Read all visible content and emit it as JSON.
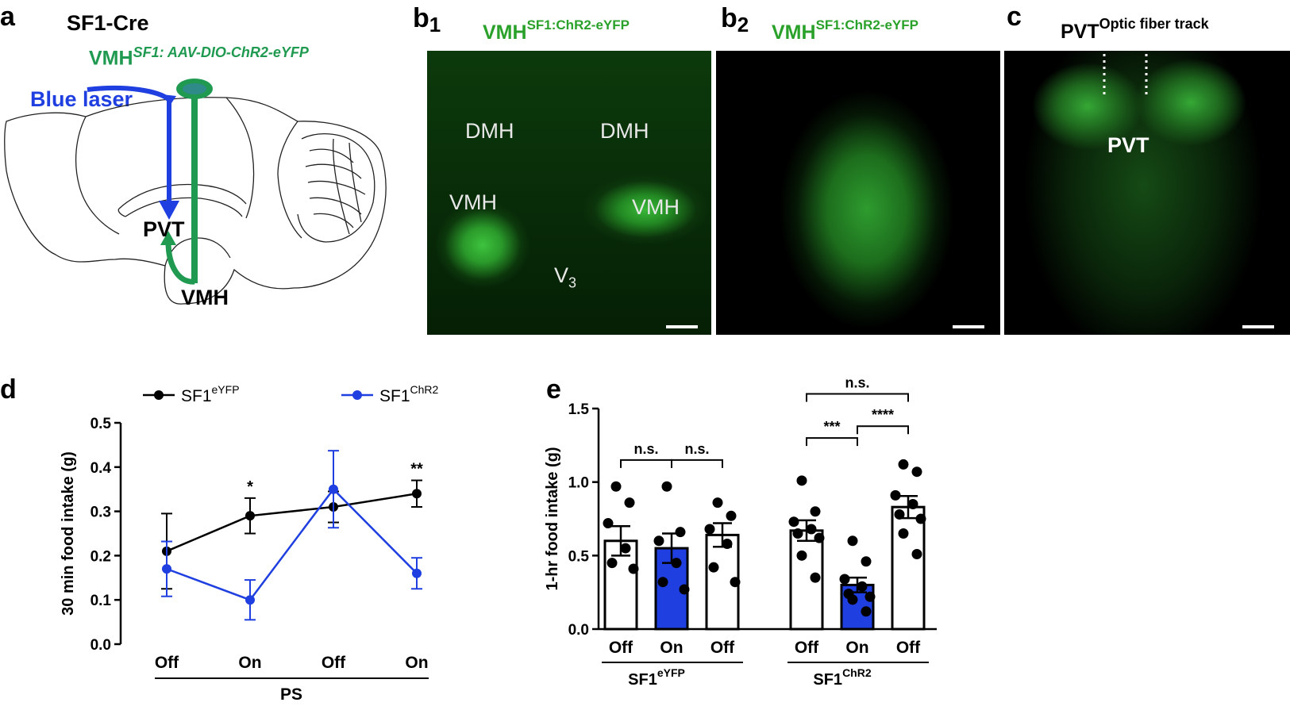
{
  "panel_a": {
    "letter": "a",
    "strain": "SF1-Cre",
    "virus_main": "VMH",
    "virus_sup": "SF1: AAV-DIO-ChR2-eYFP",
    "laser": "Blue laser",
    "pvt": "PVT",
    "vmh": "VMH",
    "colors": {
      "laser": "#1f3fe0",
      "fiber": "#1f9a50"
    }
  },
  "panel_b1": {
    "letter": "b",
    "sub": "1",
    "title_main": "VMH",
    "title_sup": "SF1:ChR2-eYFP",
    "labels": {
      "dmh_left": "DMH",
      "dmh_right": "DMH",
      "vmh_left": "VMH",
      "vmh_right": "VMH",
      "v3": "V",
      "v3_sub": "3"
    }
  },
  "panel_b2": {
    "letter": "b",
    "sub": "2",
    "title_main": "VMH",
    "title_sup": "SF1:ChR2-eYFP"
  },
  "panel_c": {
    "letter": "c",
    "title_main": "PVT",
    "title_sup": "Optic fiber track",
    "label": "PVT"
  },
  "panel_d": {
    "letter": "d",
    "legend": [
      {
        "main": "SF1",
        "sup": "eYFP",
        "color": "#000000"
      },
      {
        "main": "SF1",
        "sup": "ChR2",
        "color": "#1f3fe0"
      }
    ],
    "group_label": "PS",
    "chart_data": {
      "type": "line",
      "categories": [
        "Off",
        "On",
        "Off",
        "On"
      ],
      "ylabel": "30 min food intake (g)",
      "ylim": [
        0.0,
        0.5
      ],
      "yticks": [
        "0.0",
        "0.1",
        "0.2",
        "0.3",
        "0.4",
        "0.5"
      ],
      "series": [
        {
          "name": "SF1eYFP",
          "values": [
            0.21,
            0.29,
            0.31,
            0.34
          ],
          "err": [
            0.085,
            0.04,
            0.035,
            0.03
          ]
        },
        {
          "name": "SF1ChR2",
          "values": [
            0.17,
            0.1,
            0.35,
            0.16
          ],
          "err": [
            0.062,
            0.045,
            0.087,
            0.035
          ]
        }
      ],
      "annotations": [
        {
          "index": 1,
          "text": "*"
        },
        {
          "index": 3,
          "text": "**"
        }
      ]
    }
  },
  "panel_e": {
    "letter": "e",
    "groups": [
      {
        "main": "SF1",
        "sup": "eYFP"
      },
      {
        "main": "SF1",
        "sup": "ChR2"
      }
    ],
    "chart_data": {
      "type": "bar",
      "categories": [
        "Off",
        "On",
        "Off",
        "Off",
        "On",
        "Off"
      ],
      "ylabel": "1-hr food intake (g)",
      "ylim": [
        0.0,
        1.5
      ],
      "yticks": [
        "0.0",
        "0.5",
        "1.0",
        "1.5"
      ],
      "values": [
        0.6,
        0.55,
        0.64,
        0.67,
        0.3,
        0.83
      ],
      "err": [
        0.1,
        0.1,
        0.08,
        0.07,
        0.05,
        0.075
      ],
      "filled": [
        false,
        true,
        false,
        false,
        true,
        false
      ],
      "points": [
        [
          0.97,
          0.86,
          0.72,
          0.55,
          0.45,
          0.41
        ],
        [
          0.97,
          0.66,
          0.6,
          0.45,
          0.32,
          0.27
        ],
        [
          0.86,
          0.77,
          0.68,
          0.58,
          0.42,
          0.32
        ],
        [
          1.01,
          0.8,
          0.73,
          0.68,
          0.65,
          0.62,
          0.5,
          0.35
        ],
        [
          0.6,
          0.46,
          0.34,
          0.29,
          0.24,
          0.22,
          0.2,
          0.12
        ],
        [
          1.12,
          1.07,
          0.91,
          0.85,
          0.78,
          0.75,
          0.65,
          0.51
        ]
      ],
      "significance": [
        {
          "a": 0,
          "b": 1,
          "text": "n.s.",
          "y": 1.15
        },
        {
          "a": 1,
          "b": 2,
          "text": "n.s.",
          "y": 1.15
        },
        {
          "a": 3,
          "b": 4,
          "text": "***",
          "y": 1.3
        },
        {
          "a": 4,
          "b": 5,
          "text": "****",
          "y": 1.38
        },
        {
          "a": 3,
          "b": 5,
          "text": "n.s.",
          "y": 1.6
        }
      ]
    }
  }
}
